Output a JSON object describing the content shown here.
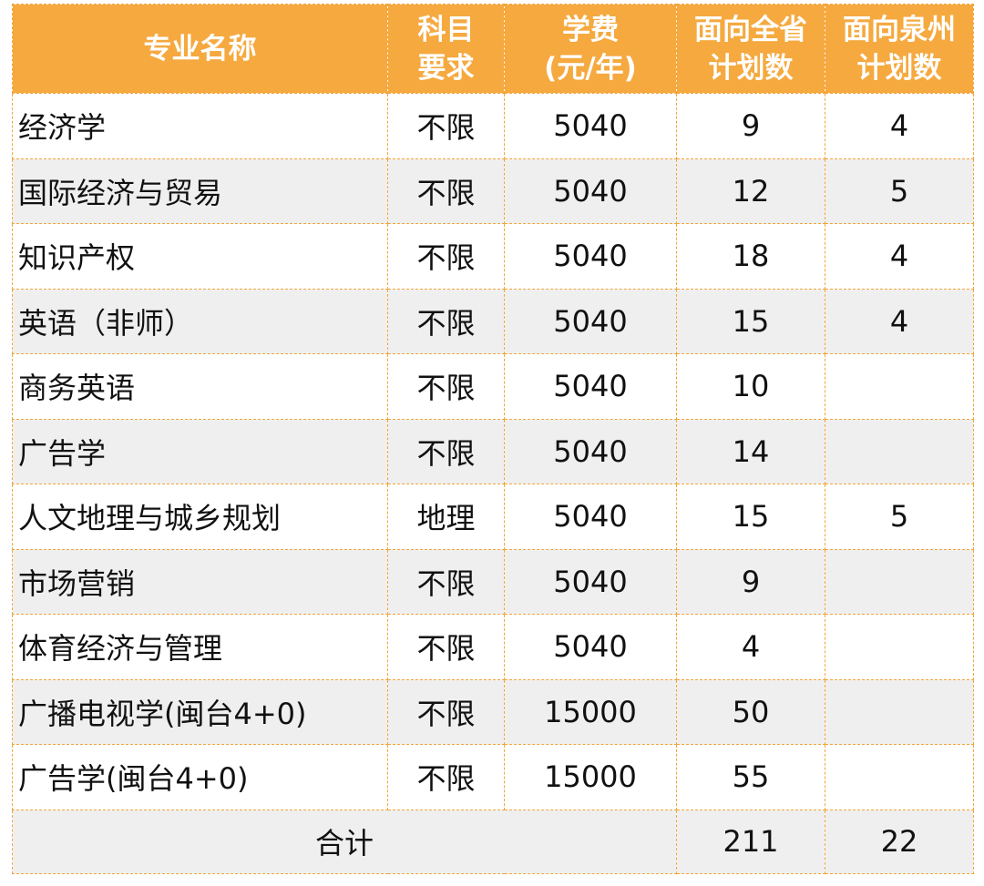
{
  "header": {
    "major_name": "专业名称",
    "subject_req": [
      "科目",
      "要求"
    ],
    "tuition": [
      "学费",
      "(元/年)"
    ],
    "plan_province": [
      "面向全省",
      "计划数"
    ],
    "plan_quanzhou": [
      "面向泉州",
      "计划数"
    ]
  },
  "rows": [
    {
      "name": "经济学",
      "subject": "不限",
      "tuition": "5040",
      "province": "9",
      "quanzhou": "4"
    },
    {
      "name": "国际经济与贸易",
      "subject": "不限",
      "tuition": "5040",
      "province": "12",
      "quanzhou": "5"
    },
    {
      "name": "知识产权",
      "subject": "不限",
      "tuition": "5040",
      "province": "18",
      "quanzhou": "4"
    },
    {
      "name": "英语（非师）",
      "subject": "不限",
      "tuition": "5040",
      "province": "15",
      "quanzhou": "4"
    },
    {
      "name": "商务英语",
      "subject": "不限",
      "tuition": "5040",
      "province": "10",
      "quanzhou": ""
    },
    {
      "name": "广告学",
      "subject": "不限",
      "tuition": "5040",
      "province": "14",
      "quanzhou": ""
    },
    {
      "name": "人文地理与城乡规划",
      "subject": "地理",
      "tuition": "5040",
      "province": "15",
      "quanzhou": "5"
    },
    {
      "name": "市场营销",
      "subject": "不限",
      "tuition": "5040",
      "province": "9",
      "quanzhou": ""
    },
    {
      "name": "体育经济与管理",
      "subject": "不限",
      "tuition": "5040",
      "province": "4",
      "quanzhou": ""
    },
    {
      "name": "广播电视学(闽台4+0)",
      "subject": "不限",
      "tuition": "15000",
      "province": "50",
      "quanzhou": ""
    },
    {
      "name": "广告学(闽台4+0)",
      "subject": "不限",
      "tuition": "15000",
      "province": "55",
      "quanzhou": ""
    }
  ],
  "footer": {
    "label": "合计",
    "province_total": "211",
    "quanzhou_total": "22"
  },
  "colors": {
    "header_bg": "#f5a93f",
    "border": "#f2a43a",
    "stripe": "#efefef"
  }
}
